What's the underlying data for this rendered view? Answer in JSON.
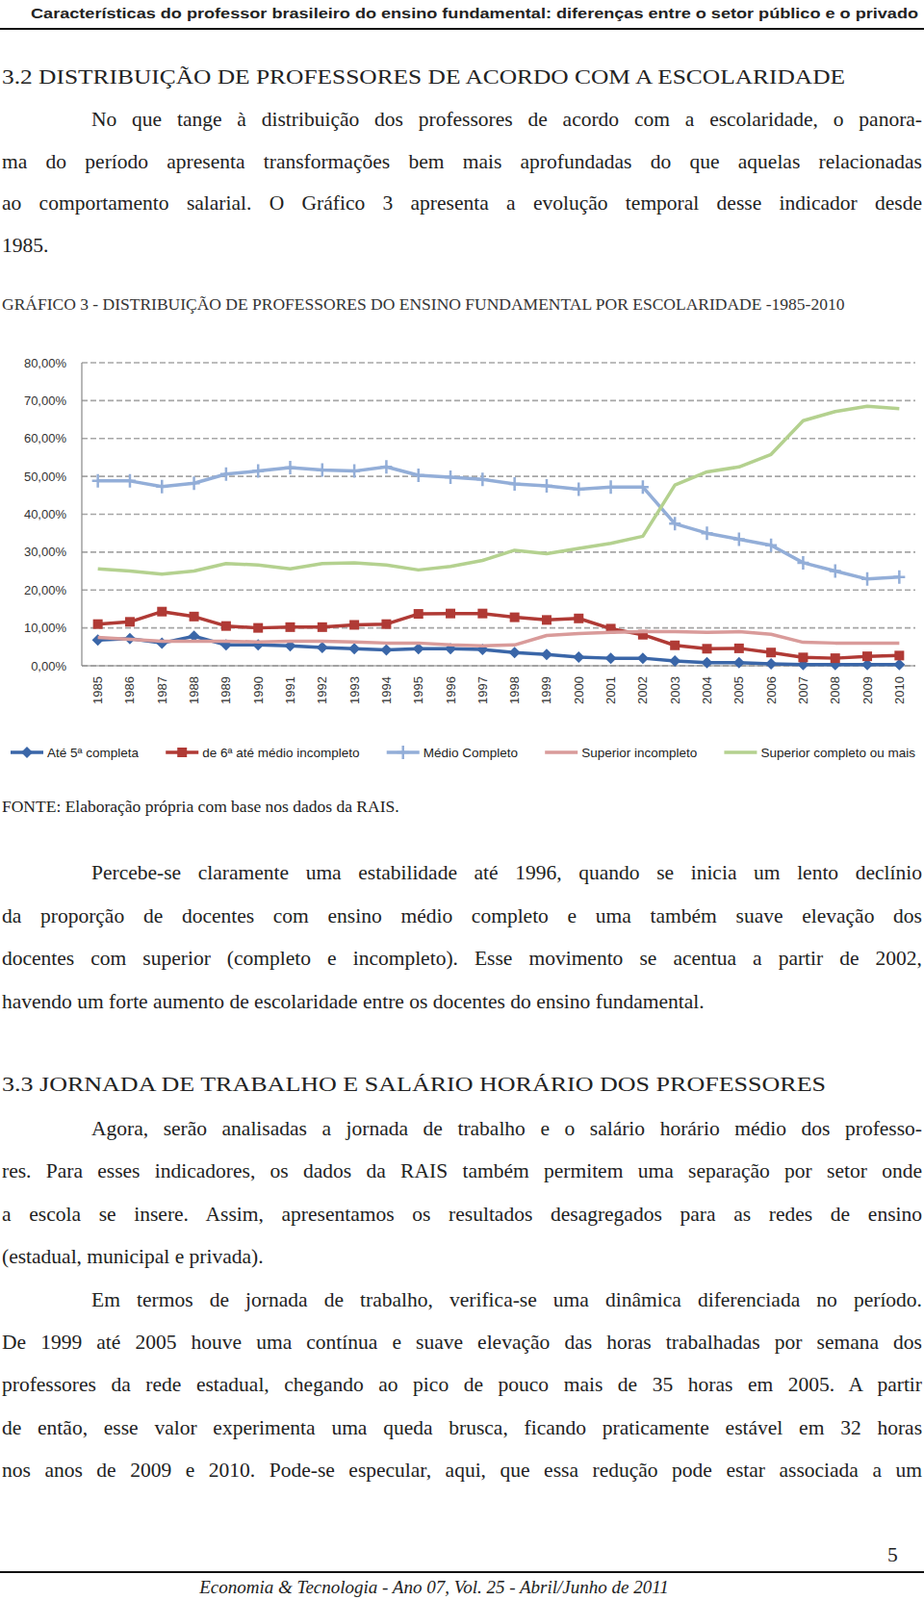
{
  "running_title": "Características do professor brasileiro do ensino fundamental: diferenças entre o setor público e o privado",
  "sections": [
    {
      "heading": "3.2 DISTRIBUIÇÃO DE PROFESSORES DE ACORDO COM A ESCOLARIDADE",
      "paragraphs": [
        [
          "No que tange à distribuição dos professores de acordo com a escolaridade, o panora-",
          "ma do período apresenta transformações bem mais aprofundadas do que aquelas relacionadas",
          "ao comportamento salarial. O Gráfico 3 apresenta a evolução temporal desse indicador desde",
          "1985."
        ],
        [
          "Percebe-se claramente uma estabilidade até 1996, quando se inicia um lento declínio",
          "da proporção de docentes com ensino médio completo e uma também suave elevação dos",
          "docentes com superior (completo e incompleto). Esse movimento se acentua a partir de 2002,",
          "havendo um forte aumento de escolaridade entre os docentes do ensino fundamental."
        ]
      ]
    },
    {
      "heading": "3.3 JORNADA DE TRABALHO E SALÁRIO HORÁRIO DOS PROFESSORES",
      "paragraphs": [
        [
          "Agora, serão analisadas a jornada de trabalho e o salário horário médio dos professo-",
          "res. Para esses indicadores, os dados da RAIS também permitem uma separação por setor onde",
          "a escola se insere. Assim, apresentamos os resultados desagregados para as redes de ensino",
          "(estadual, municipal e privada)."
        ],
        [
          "Em termos de jornada de trabalho, verifica-se uma dinâmica diferenciada no período.",
          "De 1999 até 2005 houve uma contínua e suave elevação das horas trabalhadas por semana dos",
          "professores da rede estadual, chegando ao pico de pouco mais de 35 horas em 2005. A partir",
          "de então, esse valor experimenta uma queda brusca, ficando praticamente estável em 32 horas",
          "nos anos de 2009 e 2010. Pode-se especular, aqui, que essa redução pode estar associada a um"
        ]
      ]
    }
  ],
  "figure_source": "FONTE: Elaboração própria com base nos dados da RAIS.",
  "page_number": "5",
  "footer": "Economia & Tecnologia - Ano 07, Vol. 25 - Abril/Junho de 2011",
  "chart_data": {
    "type": "line",
    "title": "GRÁFICO 3 - DISTRIBUIÇÃO DE PROFESSORES DO ENSINO FUNDAMENTAL POR ESCOLARIDADE -1985-2010",
    "categories": [
      "1985",
      "1986",
      "1987",
      "1988",
      "1989",
      "1990",
      "1991",
      "1992",
      "1993",
      "1994",
      "1995",
      "1996",
      "1997",
      "1998",
      "1999",
      "2000",
      "2001",
      "2002",
      "2003",
      "2004",
      "2005",
      "2006",
      "2007",
      "2008",
      "2009",
      "2010"
    ],
    "series": [
      {
        "name": "Até 5ª completa",
        "color": "#3a66a8",
        "marker": "diamond",
        "line_style": "solid",
        "values": [
          6.8,
          7.2,
          6.0,
          7.8,
          5.5,
          5.5,
          5.3,
          4.8,
          4.5,
          4.2,
          4.5,
          4.5,
          4.3,
          3.5,
          3.0,
          2.3,
          2.0,
          2.0,
          1.3,
          0.8,
          0.8,
          0.5,
          0.3,
          0.3,
          0.3,
          0.3
        ]
      },
      {
        "name": "de 6ª até médio incompleto",
        "color": "#b03a35",
        "marker": "square",
        "line_style": "solid",
        "values": [
          11.0,
          11.6,
          14.3,
          13.0,
          10.5,
          10.0,
          10.2,
          10.2,
          10.8,
          11.0,
          13.7,
          13.8,
          13.8,
          12.8,
          12.1,
          12.5,
          9.8,
          8.2,
          5.4,
          4.5,
          4.6,
          3.5,
          2.2,
          2.0,
          2.5,
          2.7
        ]
      },
      {
        "name": "Médio Completo",
        "color": "#93aed8",
        "marker": "plus",
        "line_style": "solid",
        "values": [
          48.8,
          48.8,
          47.3,
          48.2,
          50.6,
          51.4,
          52.3,
          51.7,
          51.4,
          52.5,
          50.3,
          49.8,
          49.2,
          48.0,
          47.5,
          46.6,
          47.2,
          47.2,
          37.5,
          35.0,
          33.4,
          31.8,
          27.2,
          25.0,
          22.9,
          23.4
        ]
      },
      {
        "name": "Superior incompleto",
        "color": "#d99b9a",
        "marker": "none",
        "line_style": "solid",
        "values": [
          7.5,
          7.0,
          6.5,
          6.5,
          6.5,
          6.3,
          6.5,
          6.5,
          6.3,
          6.0,
          6.0,
          5.5,
          5.3,
          5.5,
          8.0,
          8.5,
          8.8,
          9.0,
          9.0,
          8.8,
          9.0,
          8.3,
          6.2,
          6.0,
          6.0,
          6.0
        ]
      },
      {
        "name": "Superior completo ou mais",
        "color": "#b4d18f",
        "marker": "none",
        "line_style": "solid",
        "values": [
          25.6,
          25.0,
          24.2,
          25.0,
          27.0,
          26.6,
          25.6,
          27.0,
          27.2,
          26.6,
          25.3,
          26.2,
          27.8,
          30.5,
          29.6,
          31.0,
          32.3,
          34.2,
          47.7,
          51.2,
          52.5,
          55.8,
          64.7,
          67.1,
          68.5,
          67.9
        ]
      }
    ],
    "ylim": [
      0,
      80
    ],
    "yticks": [
      {
        "value": 0,
        "label": "0,00%"
      },
      {
        "value": 10,
        "label": "10,00%"
      },
      {
        "value": 20,
        "label": "20,00%"
      },
      {
        "value": 30,
        "label": "30,00%"
      },
      {
        "value": 40,
        "label": "40,00%"
      },
      {
        "value": 50,
        "label": "50,00%"
      },
      {
        "value": 60,
        "label": "60,00%"
      },
      {
        "value": 70,
        "label": "70,00%"
      },
      {
        "value": 80,
        "label": "80,00%"
      }
    ],
    "grid": true,
    "legend": "bottom"
  }
}
